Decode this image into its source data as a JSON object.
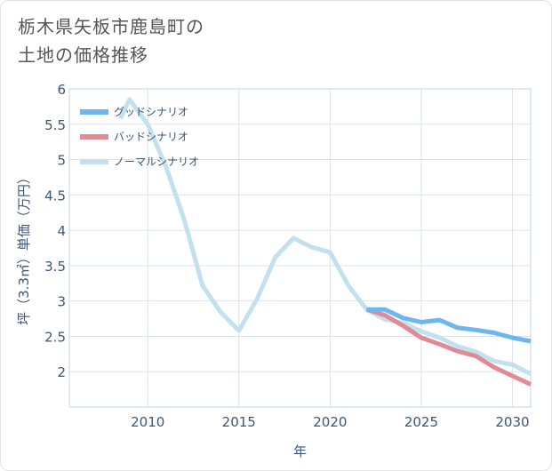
{
  "title_lines": [
    "栃木県矢板市鹿島町の",
    "土地の価格推移"
  ],
  "chart_data": {
    "type": "line",
    "xlabel": "年",
    "ylabel": "坪（3.3㎡）単価（万円）",
    "xlim": [
      2005.7,
      2031
    ],
    "ylim": [
      1.5,
      6.0
    ],
    "x_ticks": [
      2010,
      2015,
      2020,
      2025,
      2030
    ],
    "y_ticks": [
      2,
      2.5,
      3,
      3.5,
      4,
      4.5,
      5,
      5.5,
      6
    ],
    "grid": true,
    "legend_position": "top-left",
    "series": [
      {
        "name": "グッドシナリオ",
        "color": "#6db6ee",
        "x": [
          2022,
          2023,
          2024,
          2025,
          2026,
          2027,
          2028,
          2029,
          2030,
          2031
        ],
        "y": [
          2.88,
          2.88,
          2.76,
          2.7,
          2.73,
          2.62,
          2.59,
          2.55,
          2.48,
          2.43
        ]
      },
      {
        "name": "バッドシナリオ",
        "color": "#e08a93",
        "x": [
          2022,
          2023,
          2024,
          2025,
          2026,
          2027,
          2028,
          2029,
          2030,
          2031
        ],
        "y": [
          2.88,
          2.8,
          2.65,
          2.48,
          2.39,
          2.29,
          2.22,
          2.06,
          1.94,
          1.82
        ]
      },
      {
        "name": "ノーマルシナリオ",
        "color": "#c3e0ee",
        "x": [
          2008.5,
          2009,
          2010,
          2011,
          2012,
          2013,
          2014,
          2015,
          2016,
          2017,
          2018,
          2019,
          2020,
          2021,
          2022,
          2023,
          2024,
          2025,
          2026,
          2027,
          2028,
          2029,
          2030,
          2031
        ],
        "y": [
          5.58,
          5.85,
          5.5,
          4.9,
          4.15,
          3.22,
          2.84,
          2.58,
          3.03,
          3.62,
          3.89,
          3.76,
          3.69,
          3.22,
          2.88,
          2.74,
          2.69,
          2.57,
          2.48,
          2.36,
          2.28,
          2.15,
          2.1,
          1.97
        ]
      }
    ]
  }
}
